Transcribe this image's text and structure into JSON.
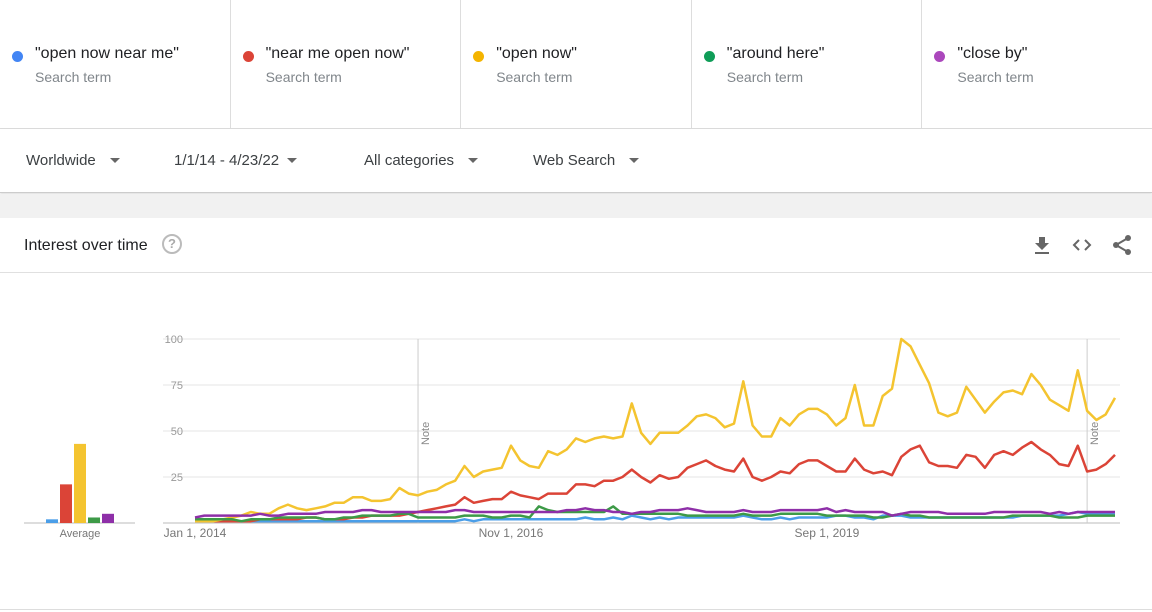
{
  "terms": [
    {
      "name": "\"open now near me\"",
      "sub": "Search term",
      "color": "#4285f4"
    },
    {
      "name": "\"near me open now\"",
      "sub": "Search term",
      "color": "#db4437"
    },
    {
      "name": "\"open now\"",
      "sub": "Search term",
      "color": "#f4b400"
    },
    {
      "name": "\"around here\"",
      "sub": "Search term",
      "color": "#0f9d58"
    },
    {
      "name": "\"close by\"",
      "sub": "Search term",
      "color": "#ab47bc"
    }
  ],
  "filters": {
    "region": "Worldwide",
    "dates": "1/1/14 - 4/23/22",
    "category": "All categories",
    "property": "Web Search"
  },
  "card": {
    "title": "Interest over time",
    "help": "?",
    "icons": [
      "download-icon",
      "embed-icon",
      "share-icon"
    ]
  },
  "chart_data": {
    "type": "line",
    "x_start": "Jan 2014",
    "x_end": "Apr 2022",
    "frequency": "monthly",
    "xticks": [
      "Jan 1, 2014",
      "Nov 1, 2016",
      "Sep 1, 2019"
    ],
    "yticks": [
      "100",
      "75",
      "50",
      "25"
    ],
    "ylim": [
      0,
      100
    ],
    "grid": true,
    "notes": [
      {
        "label": "Note",
        "month_index": 24
      },
      {
        "label": "Note",
        "month_index": 96
      }
    ],
    "average_label": "Average",
    "averages": [
      2,
      21,
      43,
      3,
      5
    ],
    "series": [
      {
        "name": "\"open now near me\"",
        "color": "#4a9ee8",
        "values": [
          1,
          1,
          1,
          1,
          1,
          1,
          1,
          1,
          1,
          1,
          1,
          1,
          1,
          1,
          1,
          1,
          1,
          1,
          1,
          1,
          1,
          1,
          1,
          1,
          1,
          1,
          1,
          1,
          1,
          2,
          1,
          2,
          2,
          2,
          2,
          2,
          2,
          2,
          2,
          2,
          2,
          2,
          3,
          2,
          2,
          3,
          2,
          4,
          3,
          2,
          3,
          2,
          3,
          3,
          3,
          3,
          3,
          3,
          3,
          4,
          3,
          2,
          2,
          3,
          2,
          3,
          3,
          3,
          3,
          4,
          4,
          3,
          3,
          2,
          4,
          4,
          4,
          3,
          3,
          3,
          3,
          3,
          3,
          3,
          3,
          3,
          3,
          3,
          3,
          4,
          4,
          4,
          4,
          4,
          5,
          6,
          5,
          5,
          5,
          5
        ]
      },
      {
        "name": "\"near me open now\"",
        "color": "#db4437",
        "values": [
          1,
          1,
          1,
          1,
          1,
          1,
          1,
          2,
          2,
          2,
          2,
          2,
          3,
          3,
          2,
          2,
          2,
          3,
          3,
          4,
          4,
          4,
          4,
          5,
          6,
          7,
          8,
          9,
          10,
          14,
          11,
          12,
          13,
          13,
          17,
          15,
          14,
          13,
          16,
          16,
          16,
          21,
          21,
          20,
          23,
          23,
          25,
          29,
          25,
          22,
          26,
          24,
          25,
          30,
          32,
          34,
          31,
          29,
          28,
          35,
          25,
          23,
          25,
          28,
          27,
          32,
          34,
          34,
          31,
          28,
          28,
          35,
          29,
          27,
          28,
          26,
          36,
          40,
          42,
          33,
          31,
          31,
          30,
          37,
          36,
          30,
          37,
          39,
          37,
          41,
          44,
          40,
          37,
          32,
          31,
          42,
          28,
          29,
          32,
          37
        ]
      },
      {
        "name": "\"open now\"",
        "color": "#f4c430",
        "values": [
          1,
          1,
          1,
          2,
          3,
          4,
          6,
          5,
          5,
          8,
          10,
          8,
          7,
          8,
          9,
          11,
          11,
          14,
          14,
          12,
          12,
          13,
          19,
          16,
          15,
          17,
          18,
          21,
          23,
          31,
          25,
          28,
          29,
          30,
          42,
          34,
          31,
          30,
          39,
          37,
          40,
          46,
          44,
          46,
          47,
          46,
          47,
          65,
          49,
          43,
          49,
          49,
          49,
          53,
          58,
          59,
          57,
          52,
          54,
          77,
          53,
          47,
          47,
          57,
          53,
          59,
          62,
          62,
          59,
          53,
          57,
          75,
          53,
          53,
          69,
          73,
          100,
          96,
          86,
          76,
          60,
          58,
          60,
          74,
          67,
          60,
          66,
          71,
          72,
          70,
          81,
          75,
          67,
          64,
          61,
          83,
          61,
          56,
          59,
          68
        ]
      },
      {
        "name": "\"around here\"",
        "color": "#3d9a47",
        "values": [
          2,
          2,
          2,
          2,
          2,
          1,
          2,
          2,
          2,
          3,
          3,
          3,
          3,
          3,
          2,
          2,
          3,
          3,
          4,
          4,
          4,
          4,
          5,
          5,
          3,
          3,
          3,
          3,
          3,
          4,
          4,
          4,
          3,
          3,
          4,
          4,
          3,
          9,
          7,
          6,
          6,
          6,
          6,
          6,
          6,
          9,
          5,
          5,
          5,
          5,
          5,
          5,
          5,
          4,
          4,
          4,
          4,
          4,
          4,
          5,
          4,
          4,
          4,
          5,
          5,
          5,
          5,
          5,
          4,
          4,
          4,
          4,
          4,
          3,
          3,
          4,
          5,
          4,
          4,
          3,
          3,
          3,
          3,
          3,
          3,
          3,
          3,
          3,
          4,
          4,
          4,
          4,
          4,
          3,
          3,
          3,
          4,
          4,
          4,
          4
        ]
      },
      {
        "name": "\"close by\"",
        "color": "#8e2fa8",
        "values": [
          3,
          4,
          4,
          4,
          4,
          4,
          4,
          5,
          4,
          4,
          5,
          5,
          5,
          5,
          6,
          6,
          6,
          6,
          7,
          7,
          6,
          6,
          6,
          6,
          6,
          6,
          6,
          6,
          7,
          7,
          6,
          6,
          6,
          6,
          6,
          6,
          6,
          6,
          6,
          6,
          7,
          7,
          8,
          7,
          7,
          6,
          6,
          5,
          6,
          6,
          7,
          7,
          7,
          8,
          7,
          6,
          6,
          6,
          6,
          7,
          6,
          6,
          6,
          7,
          7,
          7,
          7,
          7,
          8,
          6,
          7,
          6,
          6,
          6,
          6,
          4,
          5,
          6,
          6,
          6,
          6,
          5,
          5,
          5,
          5,
          5,
          6,
          6,
          6,
          6,
          6,
          6,
          5,
          6,
          5,
          6,
          6,
          6,
          6,
          6
        ]
      }
    ]
  }
}
